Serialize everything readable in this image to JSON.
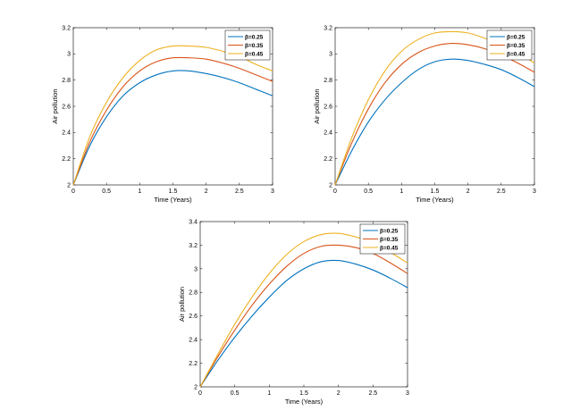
{
  "chart_data": [
    {
      "type": "line",
      "xlabel": "Time (Years)",
      "ylabel": "Air pollution",
      "xlim": [
        0,
        3
      ],
      "ylim": [
        2,
        3.2
      ],
      "xticks": [
        "0",
        "0.5",
        "1",
        "1.5",
        "2",
        "2.5",
        "3"
      ],
      "yticks": [
        "2",
        "2.2",
        "2.4",
        "2.6",
        "2.8",
        "3",
        "3.2"
      ],
      "legend_position": "top-right",
      "x": [
        0,
        0.25,
        0.5,
        0.75,
        1.0,
        1.25,
        1.5,
        1.75,
        2.0,
        2.25,
        2.5,
        2.75,
        3.0
      ],
      "series": [
        {
          "name": "β=0.25",
          "color": "#0072BD",
          "values": [
            2.0,
            2.3,
            2.52,
            2.68,
            2.78,
            2.84,
            2.87,
            2.87,
            2.85,
            2.82,
            2.78,
            2.73,
            2.68
          ]
        },
        {
          "name": "β=0.35",
          "color": "#D95319",
          "values": [
            2.0,
            2.33,
            2.57,
            2.75,
            2.87,
            2.94,
            2.97,
            2.97,
            2.96,
            2.93,
            2.89,
            2.84,
            2.79
          ]
        },
        {
          "name": "β=0.45",
          "color": "#EDB120",
          "values": [
            2.0,
            2.37,
            2.63,
            2.82,
            2.95,
            3.03,
            3.06,
            3.06,
            3.05,
            3.02,
            2.98,
            2.92,
            2.87
          ]
        }
      ]
    },
    {
      "type": "line",
      "xlabel": "Time (Years)",
      "ylabel": "Air pollution",
      "xlim": [
        0,
        3
      ],
      "ylim": [
        2,
        3.2
      ],
      "xticks": [
        "0",
        "0.5",
        "1",
        "1.5",
        "2",
        "2.5",
        "3"
      ],
      "yticks": [
        "2",
        "2.2",
        "2.4",
        "2.6",
        "2.8",
        "3",
        "3.2"
      ],
      "legend_position": "top-right",
      "x": [
        0,
        0.25,
        0.5,
        0.75,
        1.0,
        1.25,
        1.5,
        1.75,
        2.0,
        2.25,
        2.5,
        2.75,
        3.0
      ],
      "series": [
        {
          "name": "β=0.25",
          "color": "#0072BD",
          "values": [
            2.0,
            2.26,
            2.48,
            2.65,
            2.78,
            2.88,
            2.94,
            2.96,
            2.95,
            2.92,
            2.88,
            2.82,
            2.75
          ]
        },
        {
          "name": "β=0.35",
          "color": "#D95319",
          "values": [
            2.0,
            2.32,
            2.58,
            2.78,
            2.92,
            3.01,
            3.06,
            3.08,
            3.07,
            3.04,
            2.99,
            2.93,
            2.86
          ]
        },
        {
          "name": "β=0.45",
          "color": "#EDB120",
          "values": [
            2.0,
            2.36,
            2.65,
            2.87,
            3.02,
            3.11,
            3.16,
            3.17,
            3.16,
            3.12,
            3.07,
            3.01,
            2.93
          ]
        }
      ]
    },
    {
      "type": "line",
      "xlabel": "Time (Years)",
      "ylabel": "Air pollution",
      "xlim": [
        0,
        3
      ],
      "ylim": [
        2,
        3.4
      ],
      "xticks": [
        "0",
        "0.5",
        "1",
        "1.5",
        "2",
        "2.5",
        "3"
      ],
      "yticks": [
        "2",
        "2.2",
        "2.4",
        "2.6",
        "2.8",
        "3",
        "3.2",
        "3.4"
      ],
      "legend_position": "top-right",
      "x": [
        0,
        0.25,
        0.5,
        0.75,
        1.0,
        1.25,
        1.5,
        1.75,
        2.0,
        2.25,
        2.5,
        2.75,
        3.0
      ],
      "series": [
        {
          "name": "β=0.25",
          "color": "#0072BD",
          "values": [
            2.0,
            2.22,
            2.42,
            2.6,
            2.76,
            2.9,
            3.0,
            3.06,
            3.07,
            3.04,
            2.99,
            2.92,
            2.84
          ]
        },
        {
          "name": "β=0.35",
          "color": "#D95319",
          "values": [
            2.0,
            2.25,
            2.48,
            2.69,
            2.87,
            3.02,
            3.13,
            3.19,
            3.2,
            3.18,
            3.13,
            3.05,
            2.96
          ]
        },
        {
          "name": "β=0.45",
          "color": "#EDB120",
          "values": [
            2.0,
            2.27,
            2.53,
            2.76,
            2.96,
            3.12,
            3.23,
            3.29,
            3.3,
            3.27,
            3.22,
            3.14,
            3.05
          ]
        }
      ]
    }
  ]
}
